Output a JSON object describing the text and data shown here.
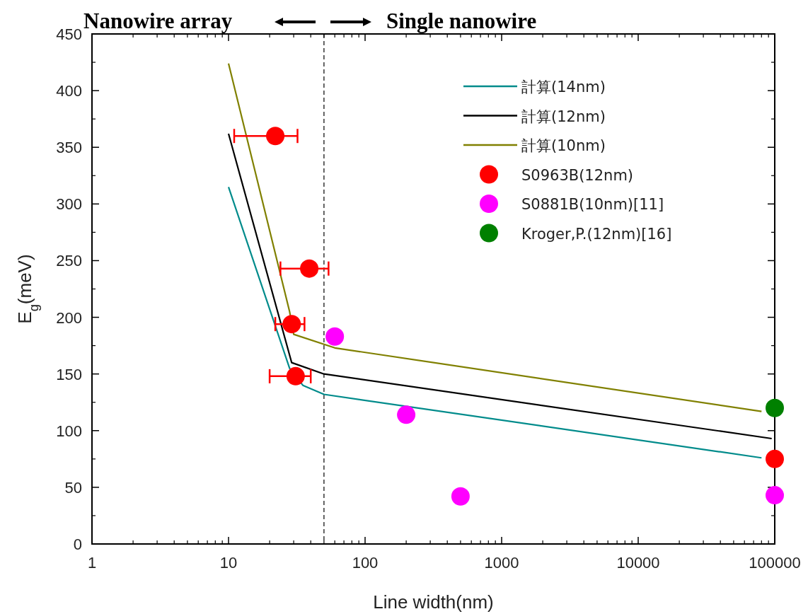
{
  "chart_data": {
    "type": "line",
    "xlabel": "Line width(nm)",
    "ylabel": "E$_{g}$(meV)",
    "annotations": [
      "Nanowire array",
      "Single nanowire"
    ],
    "log": "x",
    "xlim": [
      1,
      100000
    ],
    "xticks": [
      1,
      10,
      100,
      1000,
      10000,
      100000
    ],
    "ylim": [
      0,
      450
    ],
    "yticks": [
      0,
      50,
      100,
      150,
      200,
      250,
      300,
      350,
      400,
      450
    ],
    "legend": "top right",
    "ref_lines": [
      {
        "axis": "x",
        "value": 50,
        "color": "#000000",
        "line_style": "dashed"
      }
    ],
    "series": [
      {
        "name": "計算(14nm)",
        "color": "#008b8b",
        "marker": "none",
        "x": [
          10,
          28,
          35,
          50,
          80000
        ],
        "values": [
          315,
          155,
          140,
          132,
          76
        ]
      },
      {
        "name": "計算(12nm)",
        "color": "#000000",
        "marker": "none",
        "x": [
          10,
          29,
          50,
          95000
        ],
        "values": [
          362,
          160,
          150,
          93
        ]
      },
      {
        "name": "計算(10nm)",
        "color": "#808000",
        "marker": "none",
        "x": [
          10,
          28,
          30,
          60,
          80000
        ],
        "values": [
          424,
          205,
          185,
          173,
          117
        ]
      },
      {
        "name": "S0963B(12nm)",
        "type": "scatter",
        "color": "#ff0000",
        "marker": "circle",
        "x": [
          22,
          39,
          29,
          31,
          100000
        ],
        "values": [
          360,
          243,
          194,
          148,
          75
        ],
        "xerrors": [
          [
            11,
            32
          ],
          [
            24,
            54
          ],
          [
            22,
            36
          ],
          [
            20,
            40
          ],
          null
        ]
      },
      {
        "name": "S0881B(10nm)[11]",
        "type": "scatter",
        "color": "#ff00ff",
        "marker": "circle",
        "x": [
          60,
          200,
          500,
          100000
        ],
        "values": [
          183,
          114,
          42,
          43
        ]
      },
      {
        "name": "Kroger,P.(12nm)[16]",
        "type": "scatter",
        "color": "#008000",
        "marker": "circle",
        "x": [
          100000
        ],
        "values": [
          120
        ]
      }
    ]
  }
}
